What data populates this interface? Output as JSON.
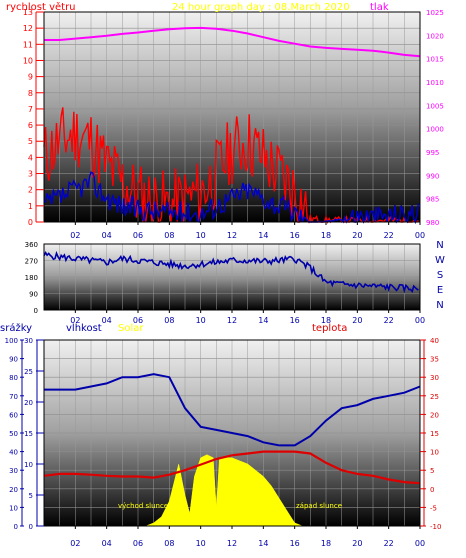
{
  "header": {
    "title": "24 hour graph day : 08.March 2020",
    "left_label": "rychlost větru",
    "right_label": "tlak"
  },
  "colors": {
    "wind_speed": "#ff0000",
    "wind_gust": "#0000cc",
    "pressure": "#ff00ff",
    "direction": "#0000aa",
    "humidity": "#0000aa",
    "temperature": "#dd0000",
    "solar": "#ffff00",
    "title": "#ffff00"
  },
  "panel3": {
    "precip_label": "srážky",
    "humidity_label": "vlhkost",
    "solar_label": "Solar",
    "temp_label": "teplota",
    "sunrise_label": "východ slunce",
    "sunset_label": "západ slunce"
  },
  "chart_data": [
    {
      "type": "line",
      "x_ticks": [
        "02",
        "04",
        "06",
        "08",
        "10",
        "12",
        "14",
        "16",
        "18",
        "20",
        "22",
        "00"
      ],
      "y_left_ticks": [
        "0",
        "1",
        "2",
        "3",
        "4",
        "5",
        "6",
        "7",
        "8",
        "9",
        "10",
        "11",
        "12",
        "13"
      ],
      "y_right_ticks": [
        "980",
        "985",
        "990",
        "995",
        "1000",
        "1005",
        "1010",
        "1015",
        "1020",
        "1025"
      ],
      "y_left_range": [
        0,
        13
      ],
      "y_right_range": [
        980,
        1025
      ],
      "series": [
        {
          "key": "pressure",
          "axis": "right",
          "x": [
            0,
            1,
            2,
            3,
            4,
            5,
            6,
            7,
            8,
            9,
            10,
            11,
            12,
            13,
            14,
            15,
            16,
            17,
            18,
            19,
            20,
            21,
            22,
            23,
            24
          ],
          "values": [
            1019,
            1019,
            1019.3,
            1019.6,
            1019.9,
            1020.3,
            1020.6,
            1021,
            1021.3,
            1021.5,
            1021.6,
            1021.4,
            1021,
            1020.4,
            1019.6,
            1018.8,
            1018.2,
            1017.6,
            1017.3,
            1017.1,
            1016.9,
            1016.7,
            1016.3,
            1015.8,
            1015.5
          ]
        },
        {
          "key": "wind_speed",
          "axis": "left",
          "x": [
            0,
            1,
            2,
            3,
            4,
            5,
            6,
            7,
            8,
            9,
            10,
            11,
            12,
            13,
            14,
            15,
            16,
            17,
            18,
            19,
            20,
            21,
            22,
            23,
            24
          ],
          "values": [
            4,
            5,
            5.5,
            5,
            3.5,
            2.5,
            1.6,
            1.3,
            1,
            1.4,
            1.8,
            3,
            4.5,
            5,
            4,
            3,
            2,
            0.2,
            0.1,
            0.1,
            0.1,
            0.1,
            0.1,
            0.1,
            0.1
          ]
        },
        {
          "key": "wind_gust",
          "axis": "left",
          "x": [
            0,
            1,
            2,
            3,
            4,
            5,
            6,
            7,
            8,
            9,
            10,
            11,
            12,
            13,
            14,
            15,
            16,
            17,
            18,
            19,
            20,
            21,
            22,
            23,
            24
          ],
          "values": [
            1,
            1.5,
            2,
            2.5,
            1.5,
            1,
            0.8,
            0.7,
            0.6,
            0.6,
            0.5,
            1,
            1.5,
            2,
            1.5,
            1,
            0.6,
            0,
            0,
            0.2,
            0.4,
            0.3,
            0.4,
            0.5,
            0.5
          ]
        }
      ]
    },
    {
      "type": "line",
      "x_ticks": [
        "02",
        "04",
        "06",
        "08",
        "10",
        "12",
        "14",
        "16",
        "18",
        "20",
        "22",
        "00"
      ],
      "y_ticks": [
        "0",
        "90",
        "180",
        "270",
        "360"
      ],
      "y_range": [
        0,
        360
      ],
      "direction_labels": [
        "N",
        "W",
        "S",
        "E",
        "N"
      ],
      "series": [
        {
          "key": "direction",
          "x": [
            0,
            1,
            2,
            3,
            4,
            5,
            6,
            7,
            8,
            9,
            10,
            11,
            12,
            13,
            14,
            15,
            16,
            17,
            18,
            19,
            20,
            21,
            22,
            23,
            24
          ],
          "values": [
            300,
            290,
            280,
            270,
            260,
            280,
            270,
            260,
            250,
            240,
            250,
            260,
            270,
            270,
            265,
            270,
            280,
            230,
            150,
            140,
            135,
            130,
            125,
            120,
            115
          ]
        }
      ]
    },
    {
      "type": "line",
      "x_ticks": [
        "02",
        "04",
        "06",
        "08",
        "10",
        "12",
        "14",
        "16",
        "18",
        "20",
        "22",
        "00"
      ],
      "y_precip_ticks": [
        "0",
        "10",
        "20",
        "30",
        "40",
        "50",
        "60",
        "70",
        "80",
        "90",
        "100"
      ],
      "y_humidity_ticks": [
        "0",
        "5",
        "10",
        "15",
        "20",
        "25",
        "30"
      ],
      "y_temp_ticks": [
        "-10",
        "-5",
        "0",
        "5",
        "10",
        "15",
        "20",
        "25",
        "30",
        "35",
        "40"
      ],
      "y_humidity_range": [
        0,
        30
      ],
      "y_temp_range": [
        -10,
        40
      ],
      "series": [
        {
          "key": "humidity",
          "axis": "humidity",
          "x": [
            0,
            1,
            2,
            3,
            4,
            5,
            6,
            7,
            8,
            9,
            10,
            11,
            12,
            13,
            14,
            15,
            16,
            17,
            18,
            19,
            20,
            21,
            22,
            23,
            24
          ],
          "values": [
            22,
            22,
            22,
            22.5,
            23,
            24,
            24,
            24.5,
            24,
            19,
            16,
            15.5,
            15,
            14.5,
            13.5,
            13,
            13,
            14.5,
            17,
            19,
            19.5,
            20.5,
            21,
            21.5,
            22.5
          ]
        },
        {
          "key": "temperature",
          "axis": "temp",
          "x": [
            0,
            1,
            2,
            3,
            4,
            5,
            6,
            7,
            8,
            9,
            10,
            11,
            12,
            13,
            14,
            15,
            16,
            17,
            18,
            19,
            20,
            21,
            22,
            23,
            24
          ],
          "values": [
            3.5,
            4,
            4,
            3.8,
            3.5,
            3.3,
            3.3,
            3,
            3.8,
            5,
            6.5,
            8,
            9,
            9.5,
            10,
            10,
            10,
            9.5,
            7,
            5,
            4,
            3.5,
            2.5,
            1.8,
            1.5
          ]
        },
        {
          "key": "solar",
          "axis": "humidity",
          "x": [
            6.5,
            7,
            7.5,
            8,
            8.3,
            8.6,
            9,
            9.3,
            9.6,
            10,
            10.4,
            10.8,
            11,
            11.2,
            11.5,
            12,
            12.5,
            13,
            13.5,
            14,
            14.5,
            15,
            15.5,
            16,
            16.5
          ],
          "values": [
            0,
            0.5,
            1.5,
            4,
            7,
            10,
            5,
            2,
            8,
            11,
            11.5,
            11,
            3,
            11,
            11,
            11,
            10.5,
            10,
            9,
            8,
            6.5,
            4.5,
            2.5,
            0.5,
            0
          ]
        }
      ]
    }
  ]
}
